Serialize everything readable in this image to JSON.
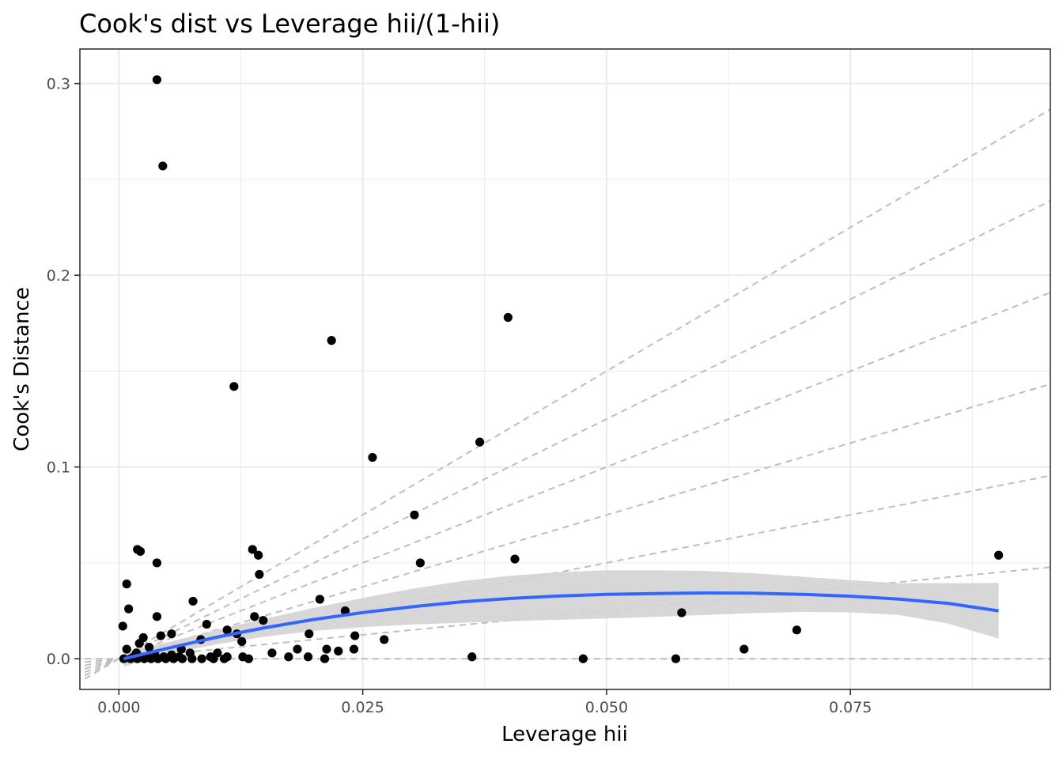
{
  "chart_data": {
    "type": "scatter",
    "title": "Cook's dist vs Leverage hii/(1-hii)",
    "xlabel": "Leverage hii",
    "ylabel": "Cook's Distance",
    "xlim": [
      -0.004,
      0.0955
    ],
    "ylim": [
      -0.016,
      0.318
    ],
    "x_ticks": [
      0.0,
      0.025,
      0.05,
      0.075
    ],
    "x_tick_labels": [
      "0.000",
      "0.025",
      "0.050",
      "0.075"
    ],
    "y_ticks": [
      0.0,
      0.1,
      0.2,
      0.3
    ],
    "y_tick_labels": [
      "0.0",
      "0.1",
      "0.2",
      "0.3"
    ],
    "grid": true,
    "colors": {
      "points": "#000000",
      "smooth_line": "#3366FF",
      "confidence_band": "#d3d3d3",
      "reference_lines": "#bebebe",
      "grid": "#ebebeb"
    },
    "points": [
      {
        "x": 0.0039,
        "y": 0.302
      },
      {
        "x": 0.0045,
        "y": 0.257
      },
      {
        "x": 0.0399,
        "y": 0.178
      },
      {
        "x": 0.0218,
        "y": 0.166
      },
      {
        "x": 0.0118,
        "y": 0.142
      },
      {
        "x": 0.037,
        "y": 0.113
      },
      {
        "x": 0.026,
        "y": 0.105
      },
      {
        "x": 0.0303,
        "y": 0.075
      },
      {
        "x": 0.0019,
        "y": 0.057
      },
      {
        "x": 0.0022,
        "y": 0.056
      },
      {
        "x": 0.0137,
        "y": 0.057
      },
      {
        "x": 0.0143,
        "y": 0.054
      },
      {
        "x": 0.0406,
        "y": 0.052
      },
      {
        "x": 0.0309,
        "y": 0.05
      },
      {
        "x": 0.0039,
        "y": 0.05
      },
      {
        "x": 0.0144,
        "y": 0.044
      },
      {
        "x": 0.0008,
        "y": 0.039
      },
      {
        "x": 0.0902,
        "y": 0.054
      },
      {
        "x": 0.0076,
        "y": 0.03
      },
      {
        "x": 0.001,
        "y": 0.026
      },
      {
        "x": 0.0577,
        "y": 0.024
      },
      {
        "x": 0.0039,
        "y": 0.022
      },
      {
        "x": 0.0139,
        "y": 0.022
      },
      {
        "x": 0.0206,
        "y": 0.031
      },
      {
        "x": 0.0232,
        "y": 0.025
      },
      {
        "x": 0.0148,
        "y": 0.02
      },
      {
        "x": 0.009,
        "y": 0.018
      },
      {
        "x": 0.0004,
        "y": 0.017
      },
      {
        "x": 0.0695,
        "y": 0.015
      },
      {
        "x": 0.0111,
        "y": 0.015
      },
      {
        "x": 0.0121,
        "y": 0.013
      },
      {
        "x": 0.0195,
        "y": 0.013
      },
      {
        "x": 0.0242,
        "y": 0.012
      },
      {
        "x": 0.0272,
        "y": 0.01
      },
      {
        "x": 0.0025,
        "y": 0.011
      },
      {
        "x": 0.0043,
        "y": 0.012
      },
      {
        "x": 0.0054,
        "y": 0.013
      },
      {
        "x": 0.0084,
        "y": 0.01
      },
      {
        "x": 0.0021,
        "y": 0.008
      },
      {
        "x": 0.0126,
        "y": 0.009
      },
      {
        "x": 0.0031,
        "y": 0.006
      },
      {
        "x": 0.0064,
        "y": 0.005
      },
      {
        "x": 0.0008,
        "y": 0.005
      },
      {
        "x": 0.0183,
        "y": 0.005
      },
      {
        "x": 0.0213,
        "y": 0.005
      },
      {
        "x": 0.0241,
        "y": 0.005
      },
      {
        "x": 0.0225,
        "y": 0.004
      },
      {
        "x": 0.0641,
        "y": 0.005
      },
      {
        "x": 0.0157,
        "y": 0.003
      },
      {
        "x": 0.0101,
        "y": 0.003
      },
      {
        "x": 0.0073,
        "y": 0.003
      },
      {
        "x": 0.0362,
        "y": 0.001
      },
      {
        "x": 0.0174,
        "y": 0.001
      },
      {
        "x": 0.0194,
        "y": 0.001
      },
      {
        "x": 0.0211,
        "y": 0.0
      },
      {
        "x": 0.0476,
        "y": 0.0
      },
      {
        "x": 0.0571,
        "y": 0.0
      },
      {
        "x": 0.0111,
        "y": 0.001
      },
      {
        "x": 0.0127,
        "y": 0.001
      },
      {
        "x": 0.0094,
        "y": 0.001
      },
      {
        "x": 0.0062,
        "y": 0.001
      },
      {
        "x": 0.0046,
        "y": 0.001
      },
      {
        "x": 0.0031,
        "y": 0.001
      },
      {
        "x": 0.0015,
        "y": 0.001
      },
      {
        "x": 0.0005,
        "y": 0.0
      },
      {
        "x": 0.0012,
        "y": 0.0
      },
      {
        "x": 0.0019,
        "y": 0.0
      },
      {
        "x": 0.0026,
        "y": 0.0
      },
      {
        "x": 0.0033,
        "y": 0.0
      },
      {
        "x": 0.004,
        "y": 0.0
      },
      {
        "x": 0.0048,
        "y": 0.0
      },
      {
        "x": 0.0056,
        "y": 0.0
      },
      {
        "x": 0.0065,
        "y": 0.0
      },
      {
        "x": 0.0075,
        "y": 0.0
      },
      {
        "x": 0.0085,
        "y": 0.0
      },
      {
        "x": 0.0097,
        "y": 0.0
      },
      {
        "x": 0.0108,
        "y": 0.0
      },
      {
        "x": 0.0133,
        "y": 0.0
      },
      {
        "x": 0.0054,
        "y": 0.002
      },
      {
        "x": 0.0037,
        "y": 0.002
      },
      {
        "x": 0.0018,
        "y": 0.003
      }
    ],
    "smooth_line": {
      "x": [
        0.0005,
        0.005,
        0.01,
        0.015,
        0.02,
        0.025,
        0.03,
        0.035,
        0.04,
        0.045,
        0.05,
        0.055,
        0.06,
        0.065,
        0.07,
        0.075,
        0.08,
        0.085,
        0.0902
      ],
      "y": [
        0.0,
        0.0055,
        0.0112,
        0.0162,
        0.0205,
        0.0241,
        0.0271,
        0.0296,
        0.0314,
        0.0327,
        0.0336,
        0.034,
        0.0343,
        0.0342,
        0.0336,
        0.0326,
        0.0311,
        0.0289,
        0.025
      ],
      "ci_low": [
        -0.004,
        0.0025,
        0.0075,
        0.0115,
        0.0145,
        0.0165,
        0.0178,
        0.0188,
        0.0196,
        0.0203,
        0.021,
        0.0218,
        0.0228,
        0.0238,
        0.0244,
        0.0242,
        0.0228,
        0.0184,
        0.0105
      ],
      "ci_high": [
        0.004,
        0.0085,
        0.015,
        0.0209,
        0.0265,
        0.0317,
        0.0364,
        0.0404,
        0.0432,
        0.0451,
        0.0462,
        0.0462,
        0.0458,
        0.0446,
        0.0428,
        0.041,
        0.0394,
        0.0394,
        0.0395
      ]
    },
    "reference_slopes": [
      0,
      0.5,
      1,
      1.5,
      2,
      2.5,
      3
    ]
  }
}
